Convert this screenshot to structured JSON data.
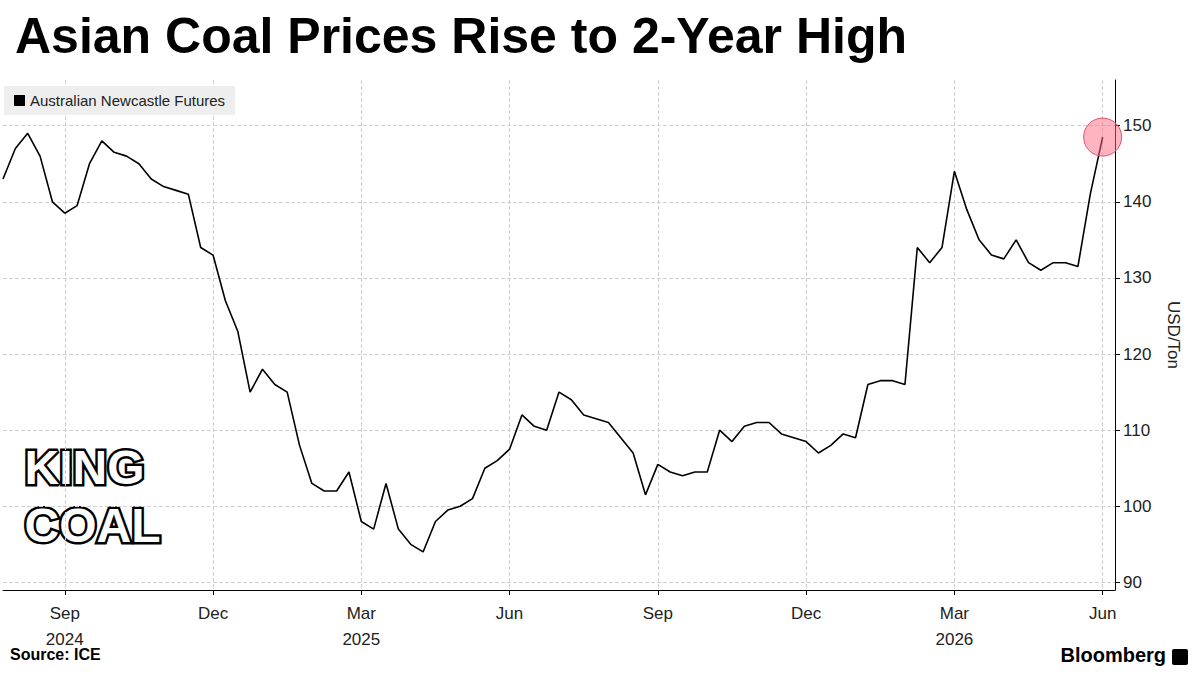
{
  "chart_data": {
    "type": "line",
    "title": "Asian Coal Prices Rise to 2-Year High",
    "y_label": "USD/Ton",
    "source": "Source: ICE",
    "credit": "Bloomberg",
    "annotations": [
      "KING COAL"
    ],
    "legend": "top-left",
    "grid": true,
    "categories": [
      null,
      null,
      null,
      null,
      null,
      "Sep 2024",
      null,
      null,
      null,
      null,
      null,
      null,
      null,
      null,
      null,
      null,
      null,
      "Dec",
      null,
      null,
      null,
      null,
      null,
      null,
      null,
      null,
      null,
      null,
      null,
      "Mar 2025",
      null,
      null,
      null,
      null,
      null,
      null,
      null,
      null,
      null,
      null,
      null,
      "Jun",
      null,
      null,
      null,
      null,
      null,
      null,
      null,
      null,
      null,
      null,
      null,
      "Sep",
      null,
      null,
      null,
      null,
      null,
      null,
      null,
      null,
      null,
      null,
      null,
      "Dec",
      null,
      null,
      null,
      null,
      null,
      null,
      null,
      null,
      null,
      null,
      null,
      "Mar 2026",
      null,
      null,
      null,
      null,
      null,
      null,
      null,
      null,
      null,
      null,
      null,
      "Jun",
      null
    ],
    "series": [
      {
        "name": "Australian Newcastle Futures",
        "color": "#000000",
        "values": [
          143,
          147,
          149,
          146,
          140,
          138.5,
          139.5,
          145,
          148,
          146.5,
          146,
          145,
          143,
          142,
          141.5,
          141,
          134,
          133,
          127,
          123,
          115,
          118,
          116,
          115,
          108,
          103,
          102,
          102,
          104.5,
          98,
          97,
          103,
          97,
          95,
          94,
          98,
          99.5,
          100,
          101,
          105,
          106,
          107.5,
          112,
          110.5,
          110,
          115,
          114,
          112,
          111.5,
          111,
          109,
          107,
          101.5,
          105.5,
          104.5,
          104,
          104.5,
          104.5,
          110,
          108.5,
          110.5,
          111,
          111,
          109.5,
          109,
          108.5,
          107,
          108,
          109.5,
          109,
          116,
          116.5,
          116.5,
          116,
          134,
          132,
          134,
          144,
          139,
          135,
          133,
          132.5,
          135,
          132,
          131,
          132,
          132,
          131.5,
          141,
          148.5,
          null
        ]
      }
    ],
    "ylim": [
      89,
      156
    ],
    "yticks": [
      90,
      100,
      110,
      120,
      130,
      140,
      150
    ]
  }
}
